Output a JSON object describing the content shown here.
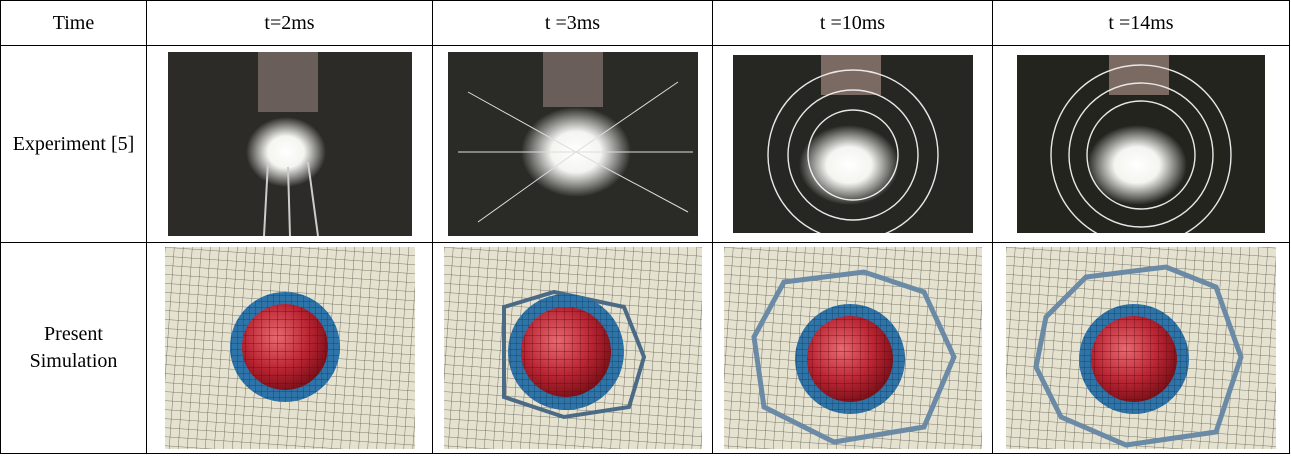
{
  "table": {
    "header": [
      "Time",
      "t=2ms",
      "t =3ms",
      "t =10ms",
      "t =14ms"
    ],
    "rows": [
      [
        "Experiment [5]"
      ],
      [
        "Present Simulation"
      ]
    ]
  }
}
